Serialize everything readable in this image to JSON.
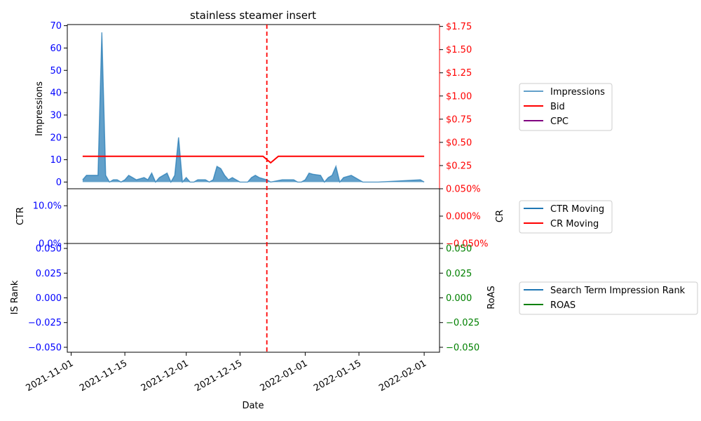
{
  "chart_data": [
    {
      "panel": "top",
      "type": "area",
      "title": "stainless steamer insert",
      "ylabel_left": "Impressions",
      "ylim_left": [
        -3,
        70.5
      ],
      "yticks_left": [
        0,
        10,
        20,
        30,
        40,
        50,
        60,
        70
      ],
      "ytick_labels_left": [
        "0",
        "10",
        "20",
        "30",
        "40",
        "50",
        "60",
        "70"
      ],
      "ylim_right": [
        0.0,
        1.77
      ],
      "yticks_right": [
        0.25,
        0.5,
        0.75,
        1.0,
        1.25,
        1.5,
        1.75
      ],
      "ytick_labels_right": [
        "$0.25",
        "$0.50",
        "$0.75",
        "$1.00",
        "$1.25",
        "$1.50",
        "$1.75"
      ],
      "colors": {
        "impressions": "#1f77b4",
        "bid": "#ff0000",
        "cpc": "#800080",
        "left_axis": "#0000ff",
        "right_axis": "#ff0000"
      },
      "legend": [
        "Impressions",
        "Bid",
        "CPC"
      ],
      "series": [
        {
          "name": "Impressions",
          "x": [
            "2021-11-04",
            "2021-11-05",
            "2021-11-06",
            "2021-11-07",
            "2021-11-08",
            "2021-11-09",
            "2021-11-10",
            "2021-11-11",
            "2021-11-12",
            "2021-11-13",
            "2021-11-14",
            "2021-11-15",
            "2021-11-16",
            "2021-11-17",
            "2021-11-18",
            "2021-11-19",
            "2021-11-20",
            "2021-11-21",
            "2021-11-22",
            "2021-11-23",
            "2021-11-24",
            "2021-11-25",
            "2021-11-26",
            "2021-11-27",
            "2021-11-28",
            "2021-11-29",
            "2021-11-30",
            "2021-12-01",
            "2021-12-02",
            "2021-12-03",
            "2021-12-04",
            "2021-12-05",
            "2021-12-06",
            "2021-12-07",
            "2021-12-08",
            "2021-12-09",
            "2021-12-10",
            "2021-12-11",
            "2021-12-12",
            "2021-12-13",
            "2021-12-14",
            "2021-12-15",
            "2021-12-16",
            "2021-12-17",
            "2021-12-18",
            "2021-12-19",
            "2021-12-20",
            "2021-12-21",
            "2021-12-22",
            "2021-12-23",
            "2021-12-26",
            "2021-12-27",
            "2021-12-28",
            "2021-12-29",
            "2021-12-30",
            "2021-12-31",
            "2022-01-01",
            "2022-01-02",
            "2022-01-03",
            "2022-01-05",
            "2022-01-06",
            "2022-01-07",
            "2022-01-08",
            "2022-01-09",
            "2022-01-10",
            "2022-01-11",
            "2022-01-13",
            "2022-01-16",
            "2022-01-20",
            "2022-01-31",
            "2022-02-01"
          ],
          "values": [
            1,
            3,
            3,
            3,
            3,
            67,
            3,
            0,
            1,
            1,
            0,
            1,
            3,
            2,
            1,
            1.5,
            2,
            1,
            4,
            0,
            2,
            3,
            4,
            0,
            3,
            20,
            0,
            2,
            0,
            0,
            1,
            1,
            1,
            0,
            1,
            7,
            6,
            3,
            1,
            2,
            1,
            0,
            0,
            0,
            2,
            3,
            2,
            1.5,
            1,
            0,
            1,
            1,
            1,
            1,
            0,
            0,
            1,
            4,
            3.5,
            3,
            0,
            2,
            3,
            7,
            0,
            2,
            3,
            0,
            0,
            1,
            0
          ]
        },
        {
          "name": "Bid",
          "x": [
            "2021-11-04",
            "2021-12-21",
            "2021-12-23",
            "2021-12-25",
            "2022-02-01"
          ],
          "values": [
            0.35,
            0.35,
            0.28,
            0.35,
            0.35
          ]
        },
        {
          "name": "CPC",
          "x": [],
          "values": []
        }
      ]
    },
    {
      "panel": "middle",
      "type": "line",
      "ylabel_left": "CTR",
      "ylabel_right": "CR",
      "ylim_left": [
        0.0,
        0.145
      ],
      "yticks_left": [
        0.0,
        0.1
      ],
      "ytick_labels_left": [
        "0.0%",
        "10.0%"
      ],
      "ylim_right": [
        -0.0005,
        0.0005
      ],
      "yticks_right": [
        -0.0005,
        0.0,
        0.0005
      ],
      "ytick_labels_right": [
        "−0.050%",
        "0.000%",
        "0.050%"
      ],
      "colors": {
        "ctr": "#1f77b4",
        "cr": "#ff0000",
        "left_axis": "#0000ff",
        "right_axis": "#ff0000"
      },
      "legend": [
        "CTR Moving",
        "CR Moving"
      ],
      "series": [
        {
          "name": "CTR Moving",
          "x": [],
          "values": []
        },
        {
          "name": "CR Moving",
          "x": [],
          "values": []
        }
      ]
    },
    {
      "panel": "bottom",
      "type": "line",
      "xlabel": "Date",
      "ylabel_left": "IS Rank",
      "ylabel_right": "RoAS",
      "ylim_left": [
        -0.055,
        0.055
      ],
      "yticks_left": [
        -0.05,
        -0.025,
        0.0,
        0.025,
        0.05
      ],
      "ytick_labels_left": [
        "−0.050",
        "−0.025",
        "0.000",
        "0.025",
        "0.050"
      ],
      "ylim_right": [
        -0.055,
        0.055
      ],
      "yticks_right": [
        -0.05,
        -0.025,
        0.0,
        0.025,
        0.05
      ],
      "ytick_labels_right": [
        "−0.050",
        "−0.025",
        "0.000",
        "0.025",
        "0.050"
      ],
      "xlim": [
        "2021-10-31",
        "2022-02-05"
      ],
      "xticks": [
        "2021-11-01",
        "2021-11-15",
        "2021-12-01",
        "2021-12-15",
        "2022-01-01",
        "2022-01-15",
        "2022-02-01"
      ],
      "colors": {
        "is_rank": "#1f77b4",
        "roas": "#008000",
        "left_axis": "#0000ff",
        "right_axis": "#008000"
      },
      "legend": [
        "Search Term Impression Rank",
        "ROAS"
      ],
      "series": [
        {
          "name": "Search Term Impression Rank",
          "x": [],
          "values": []
        },
        {
          "name": "ROAS",
          "x": [],
          "values": []
        }
      ]
    }
  ],
  "marker_line": {
    "date": "2021-12-22",
    "color": "#ff0000"
  }
}
